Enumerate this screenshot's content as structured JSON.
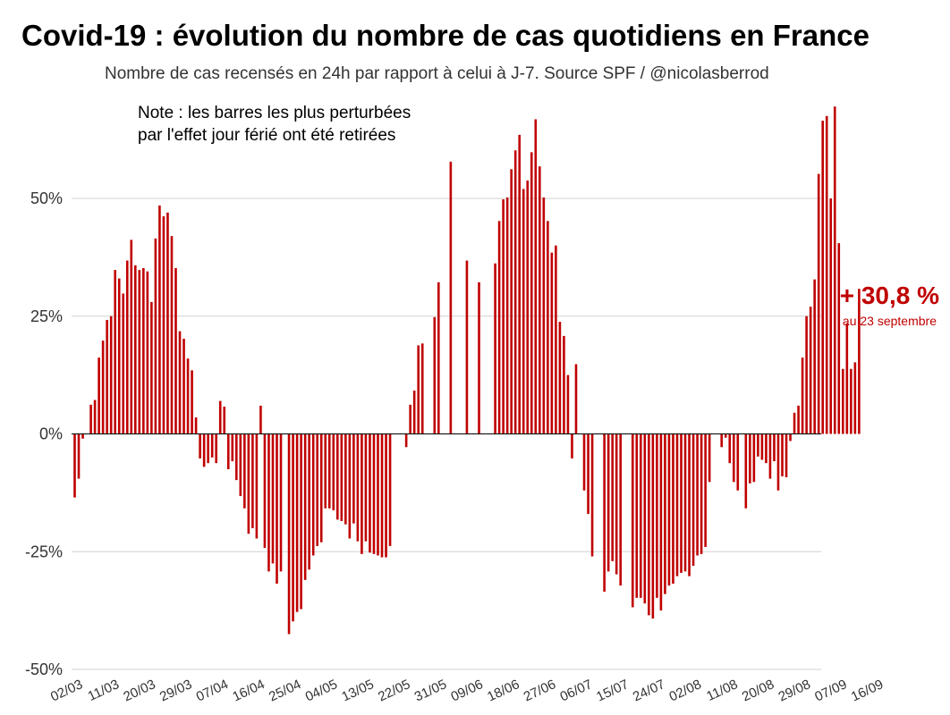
{
  "chart_data": {
    "type": "bar",
    "title": "Covid-19 : évolution du nombre de cas quotidiens en France",
    "subtitle": "Nombre de cas recensés en 24h par rapport à celui à J-7. Source SPF / @nicolasberrod",
    "note_lines": [
      "Note : les barres les plus perturbées",
      "par l'effet jour férié ont été retirées"
    ],
    "ylabel": "",
    "xlabel": "",
    "ylim": [
      -50,
      70
    ],
    "y_ticks": [
      {
        "value": 50,
        "label": "50%"
      },
      {
        "value": 25,
        "label": "25%"
      },
      {
        "value": 0,
        "label": "0%"
      },
      {
        "value": -25,
        "label": "-25%"
      },
      {
        "value": -50,
        "label": "-50%"
      }
    ],
    "x_tick_labels": [
      {
        "index": 0,
        "label": "02/03"
      },
      {
        "index": 9,
        "label": "11/03"
      },
      {
        "index": 18,
        "label": "20/03"
      },
      {
        "index": 27,
        "label": "29/03"
      },
      {
        "index": 36,
        "label": "07/04"
      },
      {
        "index": 45,
        "label": "16/04"
      },
      {
        "index": 54,
        "label": "25/04"
      },
      {
        "index": 63,
        "label": "04/05"
      },
      {
        "index": 72,
        "label": "13/05"
      },
      {
        "index": 81,
        "label": "22/05"
      },
      {
        "index": 90,
        "label": "31/05"
      },
      {
        "index": 99,
        "label": "09/06"
      },
      {
        "index": 108,
        "label": "18/06"
      },
      {
        "index": 117,
        "label": "27/06"
      },
      {
        "index": 126,
        "label": "06/07"
      },
      {
        "index": 135,
        "label": "15/07"
      },
      {
        "index": 144,
        "label": "24/07"
      },
      {
        "index": 153,
        "label": "02/08"
      },
      {
        "index": 162,
        "label": "11/08"
      },
      {
        "index": 171,
        "label": "20/08"
      },
      {
        "index": 180,
        "label": "29/08"
      },
      {
        "index": 189,
        "label": "07/09"
      },
      {
        "index": 198,
        "label": "16/09"
      }
    ],
    "values": [
      -13.5,
      -9.5,
      -1.0,
      null,
      6.2,
      7.2,
      16.2,
      19.8,
      24.2,
      25.0,
      34.8,
      33.0,
      29.8,
      36.8,
      41.2,
      35.8,
      34.8,
      35.2,
      34.5,
      28.0,
      41.5,
      48.5,
      46.2,
      47.0,
      42.0,
      35.2,
      21.8,
      20.2,
      16.0,
      13.5,
      3.5,
      -5.2,
      -7.0,
      -6.2,
      -5.0,
      -6.2,
      7.0,
      5.8,
      -7.5,
      -5.8,
      -9.8,
      -13.2,
      -15.8,
      -21.2,
      -20.0,
      -22.2,
      6.0,
      -24.2,
      -29.2,
      -27.5,
      -31.8,
      -29.2,
      null,
      -42.5,
      -39.8,
      -37.8,
      -37.2,
      -31.0,
      -28.8,
      -25.8,
      -23.8,
      -23.0,
      -15.8,
      -15.8,
      -16.2,
      -18.2,
      -18.5,
      -19.2,
      -22.2,
      -19.0,
      -22.8,
      -25.5,
      -22.8,
      -25.2,
      -25.5,
      -25.8,
      -26.2,
      -26.2,
      -23.8,
      null,
      null,
      null,
      -2.8,
      6.2,
      9.2,
      18.8,
      19.2,
      null,
      null,
      24.8,
      32.2,
      null,
      null,
      57.8,
      null,
      null,
      null,
      36.8,
      null,
      null,
      32.2,
      null,
      null,
      null,
      36.2,
      45.2,
      49.8,
      50.2,
      56.2,
      60.2,
      63.5,
      52.0,
      53.8,
      59.8,
      66.8,
      56.8,
      50.2,
      45.2,
      38.5,
      40.0,
      23.8,
      20.8,
      12.5,
      -5.2,
      14.8,
      null,
      -12.0,
      -17.0,
      -26.0,
      null,
      null,
      -33.5,
      -29.2,
      -27.0,
      -29.8,
      -32.2,
      null,
      null,
      -36.8,
      -34.8,
      -34.8,
      -36.0,
      -38.5,
      -39.2,
      -34.8,
      -37.5,
      -34.0,
      -32.2,
      -31.8,
      -30.2,
      -29.5,
      -29.2,
      -30.2,
      -28.0,
      -25.8,
      -25.5,
      -24.0,
      -10.2,
      null,
      null,
      -2.8,
      -0.8,
      -6.2,
      -10.2,
      -12.0,
      null,
      -15.8,
      -10.5,
      -10.2,
      -4.8,
      -5.5,
      -6.2,
      -9.5,
      -5.8,
      -12.0,
      -9.0,
      -9.2,
      -1.5,
      4.5,
      6.0,
      16.2,
      25.0,
      27.0,
      32.8,
      55.2,
      66.5,
      67.5,
      50.0,
      69.5,
      40.5,
      13.8,
      23.5,
      13.8,
      15.2,
      30.8
    ],
    "annotation": {
      "value_label": "+ 30,8 %",
      "date_label": "au 23 septembre"
    },
    "bar_color": "#c00000",
    "legend": "none",
    "grid": true
  }
}
